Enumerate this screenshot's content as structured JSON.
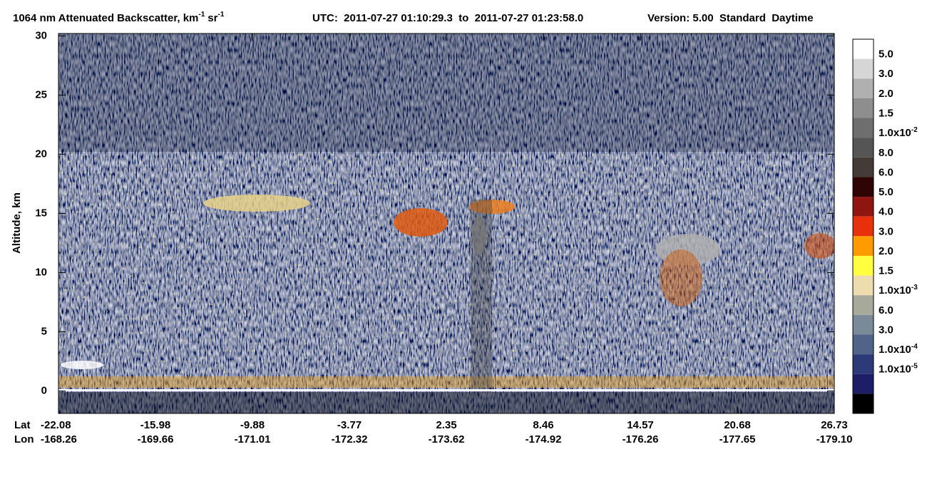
{
  "chart_data": {
    "type": "curtain",
    "title": {
      "text": "1064 nm Attenuated Backscatter, km",
      "exp1": "-1",
      "unit2": "sr",
      "exp2": "-1"
    },
    "utc": "UTC:  2011-07-27 01:10:29.3  to  2011-07-27 01:23:58.0",
    "version": "Version: 5.00  Standard  Daytime",
    "ylabel": "Altitude, km",
    "ylim": [
      -1.9,
      30.2
    ],
    "yticks": [
      0,
      5,
      10,
      15,
      20,
      25,
      30
    ],
    "x_row_labels": [
      "Lat",
      "Lon"
    ],
    "lat": [
      -22.08,
      -15.98,
      -9.88,
      -3.77,
      2.35,
      8.46,
      14.57,
      20.68,
      26.73
    ],
    "lon": [
      -168.26,
      -169.66,
      -171.01,
      -172.32,
      -173.62,
      -174.92,
      -176.26,
      -177.65,
      {
        "value": -179.1,
        "label": "-179.10"
      }
    ],
    "colorbar": {
      "colors": [
        "#ffffff",
        "#d6d6d6",
        "#b0b0b0",
        "#8e8e8e",
        "#6e6e6e",
        "#555555",
        "#443a38",
        "#2e0404",
        "#8e1510",
        "#e8300c",
        "#ff9a00",
        "#ffff40",
        "#ecdcae",
        "#a7a99b",
        "#7a8a98",
        "#50648a",
        "#2c3a78",
        "#1e1e66",
        "#000000"
      ],
      "labels": [
        "5.0",
        "3.0",
        "2.0",
        "1.5",
        {
          "base": "1.0x10",
          "exp": "-2"
        },
        "8.0",
        "6.0",
        "5.0",
        "4.0",
        "3.0",
        "2.0",
        "1.5",
        {
          "base": "1.0x10",
          "exp": "-3"
        },
        "6.0",
        "3.0",
        {
          "base": "1.0x10",
          "exp": "-4"
        },
        {
          "base": "1.0x10",
          "exp": "-5"
        }
      ]
    }
  }
}
